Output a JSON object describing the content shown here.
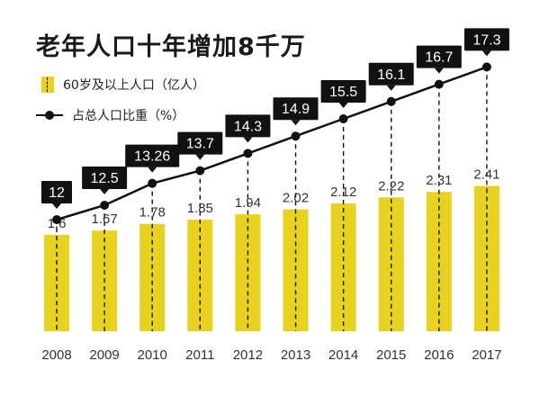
{
  "title": "老年人口十年增加8千万",
  "colors": {
    "bar": "#e8d21d",
    "line": "#111111",
    "box": "#111111",
    "box_text": "#ffffff",
    "text": "#333333"
  },
  "legend": {
    "bar_label": "60岁及以上人口（亿人）",
    "line_label": "占总人口比重（%）"
  },
  "chart_data": {
    "type": "bar",
    "categories": [
      "2008",
      "2009",
      "2010",
      "2011",
      "2012",
      "2013",
      "2014",
      "2015",
      "2016",
      "2017"
    ],
    "series": [
      {
        "name": "60岁及以上人口（亿人）",
        "type": "bar",
        "values": [
          1.6,
          1.67,
          1.78,
          1.85,
          1.94,
          2.02,
          2.12,
          2.22,
          2.31,
          2.41
        ],
        "labels": [
          "1.6",
          "1.67",
          "1.78",
          "1.85",
          "1.94",
          "2.02",
          "2.12",
          "2.22",
          "2.31",
          "2.41"
        ]
      },
      {
        "name": "占总人口比重（%）",
        "type": "line",
        "values": [
          12,
          12.5,
          13.26,
          13.7,
          14.3,
          14.9,
          15.5,
          16.1,
          16.7,
          17.3
        ],
        "labels": [
          "12",
          "12.5",
          "13.26",
          "13.7",
          "14.3",
          "14.9",
          "15.5",
          "16.1",
          "16.7",
          "17.3"
        ]
      }
    ],
    "grid": false,
    "legend_position": "top-left"
  }
}
